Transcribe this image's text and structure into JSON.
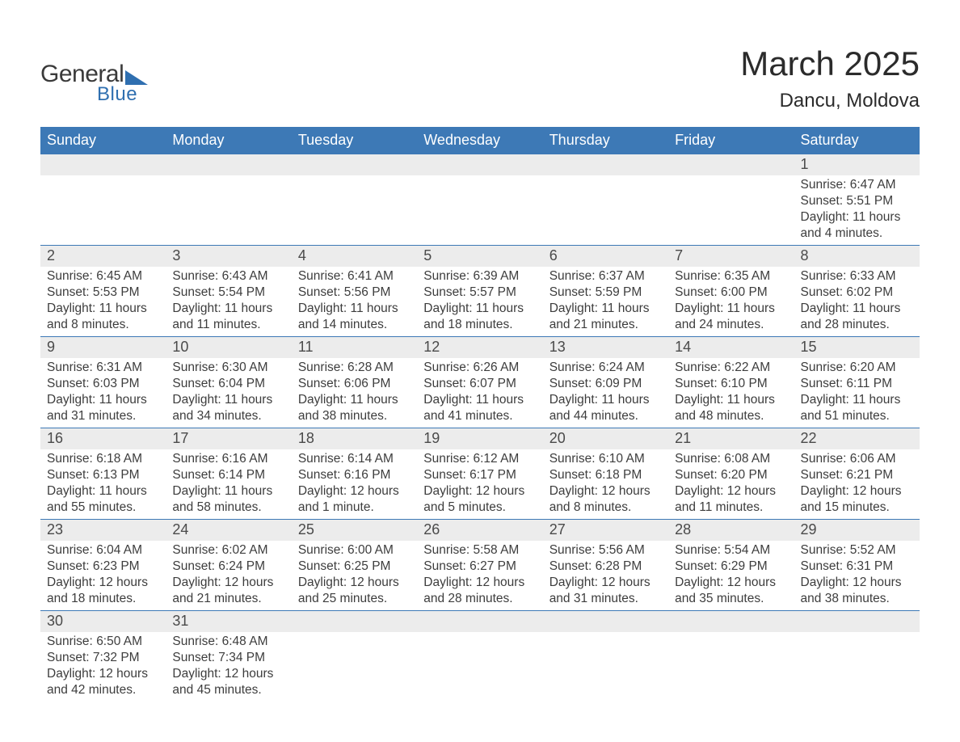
{
  "logo": {
    "text1": "General",
    "text2": "Blue"
  },
  "title": "March 2025",
  "location": "Dancu, Moldova",
  "colors": {
    "header_bg": "#3d79b6",
    "header_text": "#ffffff",
    "daynum_bg": "#ececec",
    "row_border": "#3d79b6",
    "body_text": "#3d3d3d",
    "logo_blue": "#2f6fb0"
  },
  "columns": [
    "Sunday",
    "Monday",
    "Tuesday",
    "Wednesday",
    "Thursday",
    "Friday",
    "Saturday"
  ],
  "weeks": [
    [
      null,
      null,
      null,
      null,
      null,
      null,
      {
        "n": "1",
        "sunrise": "6:47 AM",
        "sunset": "5:51 PM",
        "daylight": "11 hours and 4 minutes."
      }
    ],
    [
      {
        "n": "2",
        "sunrise": "6:45 AM",
        "sunset": "5:53 PM",
        "daylight": "11 hours and 8 minutes."
      },
      {
        "n": "3",
        "sunrise": "6:43 AM",
        "sunset": "5:54 PM",
        "daylight": "11 hours and 11 minutes."
      },
      {
        "n": "4",
        "sunrise": "6:41 AM",
        "sunset": "5:56 PM",
        "daylight": "11 hours and 14 minutes."
      },
      {
        "n": "5",
        "sunrise": "6:39 AM",
        "sunset": "5:57 PM",
        "daylight": "11 hours and 18 minutes."
      },
      {
        "n": "6",
        "sunrise": "6:37 AM",
        "sunset": "5:59 PM",
        "daylight": "11 hours and 21 minutes."
      },
      {
        "n": "7",
        "sunrise": "6:35 AM",
        "sunset": "6:00 PM",
        "daylight": "11 hours and 24 minutes."
      },
      {
        "n": "8",
        "sunrise": "6:33 AM",
        "sunset": "6:02 PM",
        "daylight": "11 hours and 28 minutes."
      }
    ],
    [
      {
        "n": "9",
        "sunrise": "6:31 AM",
        "sunset": "6:03 PM",
        "daylight": "11 hours and 31 minutes."
      },
      {
        "n": "10",
        "sunrise": "6:30 AM",
        "sunset": "6:04 PM",
        "daylight": "11 hours and 34 minutes."
      },
      {
        "n": "11",
        "sunrise": "6:28 AM",
        "sunset": "6:06 PM",
        "daylight": "11 hours and 38 minutes."
      },
      {
        "n": "12",
        "sunrise": "6:26 AM",
        "sunset": "6:07 PM",
        "daylight": "11 hours and 41 minutes."
      },
      {
        "n": "13",
        "sunrise": "6:24 AM",
        "sunset": "6:09 PM",
        "daylight": "11 hours and 44 minutes."
      },
      {
        "n": "14",
        "sunrise": "6:22 AM",
        "sunset": "6:10 PM",
        "daylight": "11 hours and 48 minutes."
      },
      {
        "n": "15",
        "sunrise": "6:20 AM",
        "sunset": "6:11 PM",
        "daylight": "11 hours and 51 minutes."
      }
    ],
    [
      {
        "n": "16",
        "sunrise": "6:18 AM",
        "sunset": "6:13 PM",
        "daylight": "11 hours and 55 minutes."
      },
      {
        "n": "17",
        "sunrise": "6:16 AM",
        "sunset": "6:14 PM",
        "daylight": "11 hours and 58 minutes."
      },
      {
        "n": "18",
        "sunrise": "6:14 AM",
        "sunset": "6:16 PM",
        "daylight": "12 hours and 1 minute."
      },
      {
        "n": "19",
        "sunrise": "6:12 AM",
        "sunset": "6:17 PM",
        "daylight": "12 hours and 5 minutes."
      },
      {
        "n": "20",
        "sunrise": "6:10 AM",
        "sunset": "6:18 PM",
        "daylight": "12 hours and 8 minutes."
      },
      {
        "n": "21",
        "sunrise": "6:08 AM",
        "sunset": "6:20 PM",
        "daylight": "12 hours and 11 minutes."
      },
      {
        "n": "22",
        "sunrise": "6:06 AM",
        "sunset": "6:21 PM",
        "daylight": "12 hours and 15 minutes."
      }
    ],
    [
      {
        "n": "23",
        "sunrise": "6:04 AM",
        "sunset": "6:23 PM",
        "daylight": "12 hours and 18 minutes."
      },
      {
        "n": "24",
        "sunrise": "6:02 AM",
        "sunset": "6:24 PM",
        "daylight": "12 hours and 21 minutes."
      },
      {
        "n": "25",
        "sunrise": "6:00 AM",
        "sunset": "6:25 PM",
        "daylight": "12 hours and 25 minutes."
      },
      {
        "n": "26",
        "sunrise": "5:58 AM",
        "sunset": "6:27 PM",
        "daylight": "12 hours and 28 minutes."
      },
      {
        "n": "27",
        "sunrise": "5:56 AM",
        "sunset": "6:28 PM",
        "daylight": "12 hours and 31 minutes."
      },
      {
        "n": "28",
        "sunrise": "5:54 AM",
        "sunset": "6:29 PM",
        "daylight": "12 hours and 35 minutes."
      },
      {
        "n": "29",
        "sunrise": "5:52 AM",
        "sunset": "6:31 PM",
        "daylight": "12 hours and 38 minutes."
      }
    ],
    [
      {
        "n": "30",
        "sunrise": "6:50 AM",
        "sunset": "7:32 PM",
        "daylight": "12 hours and 42 minutes."
      },
      {
        "n": "31",
        "sunrise": "6:48 AM",
        "sunset": "7:34 PM",
        "daylight": "12 hours and 45 minutes."
      },
      null,
      null,
      null,
      null,
      null
    ]
  ],
  "labels": {
    "sunrise": "Sunrise:",
    "sunset": "Sunset:",
    "daylight": "Daylight:"
  }
}
